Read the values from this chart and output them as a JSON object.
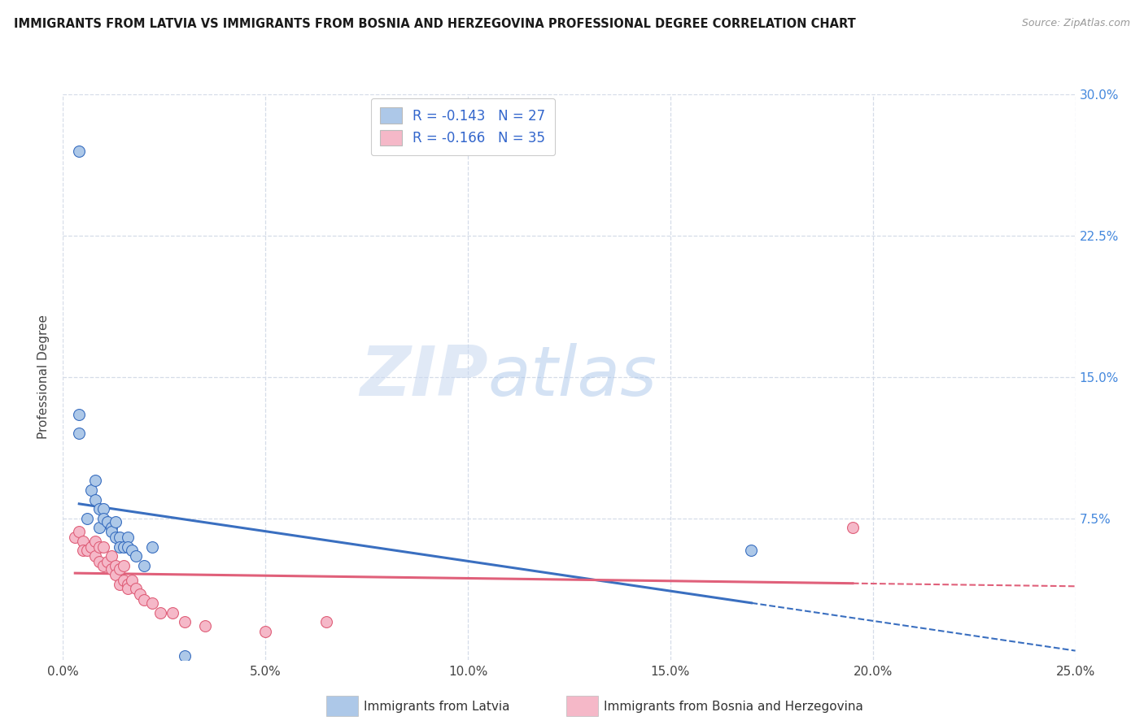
{
  "title": "IMMIGRANTS FROM LATVIA VS IMMIGRANTS FROM BOSNIA AND HERZEGOVINA PROFESSIONAL DEGREE CORRELATION CHART",
  "source": "Source: ZipAtlas.com",
  "ylabel": "Professional Degree",
  "xlim": [
    0.0,
    0.25
  ],
  "ylim": [
    0.0,
    0.3
  ],
  "xtick_labels": [
    "0.0%",
    "5.0%",
    "10.0%",
    "15.0%",
    "20.0%",
    "25.0%"
  ],
  "xtick_values": [
    0.0,
    0.05,
    0.1,
    0.15,
    0.2,
    0.25
  ],
  "right_ytick_labels": [
    "7.5%",
    "15.0%",
    "22.5%",
    "30.0%"
  ],
  "right_ytick_values": [
    0.075,
    0.15,
    0.225,
    0.3
  ],
  "legend_r_latvia": "-0.143",
  "legend_n_latvia": "27",
  "legend_r_bosnia": "-0.166",
  "legend_n_bosnia": "35",
  "latvia_color": "#adc8e8",
  "bosnia_color": "#f5b8c8",
  "latvia_line_color": "#3a6fc0",
  "bosnia_line_color": "#e0607a",
  "background_color": "#ffffff",
  "grid_color": "#d5dce8",
  "watermark_zip": "ZIP",
  "watermark_atlas": "atlas",
  "latvia_scatter_x": [
    0.004,
    0.004,
    0.006,
    0.007,
    0.008,
    0.008,
    0.009,
    0.009,
    0.01,
    0.01,
    0.011,
    0.012,
    0.012,
    0.013,
    0.013,
    0.014,
    0.014,
    0.015,
    0.016,
    0.016,
    0.017,
    0.018,
    0.02,
    0.022,
    0.03,
    0.004,
    0.17
  ],
  "latvia_scatter_y": [
    0.27,
    0.12,
    0.075,
    0.09,
    0.085,
    0.095,
    0.07,
    0.08,
    0.08,
    0.075,
    0.073,
    0.07,
    0.068,
    0.073,
    0.065,
    0.065,
    0.06,
    0.06,
    0.065,
    0.06,
    0.058,
    0.055,
    0.05,
    0.06,
    0.002,
    0.13,
    0.058
  ],
  "bosnia_scatter_x": [
    0.003,
    0.004,
    0.005,
    0.005,
    0.006,
    0.007,
    0.008,
    0.008,
    0.009,
    0.009,
    0.01,
    0.01,
    0.011,
    0.012,
    0.012,
    0.013,
    0.013,
    0.014,
    0.014,
    0.015,
    0.015,
    0.016,
    0.016,
    0.017,
    0.018,
    0.019,
    0.02,
    0.022,
    0.024,
    0.027,
    0.03,
    0.035,
    0.05,
    0.065,
    0.195
  ],
  "bosnia_scatter_y": [
    0.065,
    0.068,
    0.063,
    0.058,
    0.058,
    0.06,
    0.063,
    0.055,
    0.06,
    0.052,
    0.06,
    0.05,
    0.052,
    0.055,
    0.048,
    0.05,
    0.045,
    0.048,
    0.04,
    0.042,
    0.05,
    0.04,
    0.038,
    0.042,
    0.038,
    0.035,
    0.032,
    0.03,
    0.025,
    0.025,
    0.02,
    0.018,
    0.015,
    0.02,
    0.07
  ]
}
